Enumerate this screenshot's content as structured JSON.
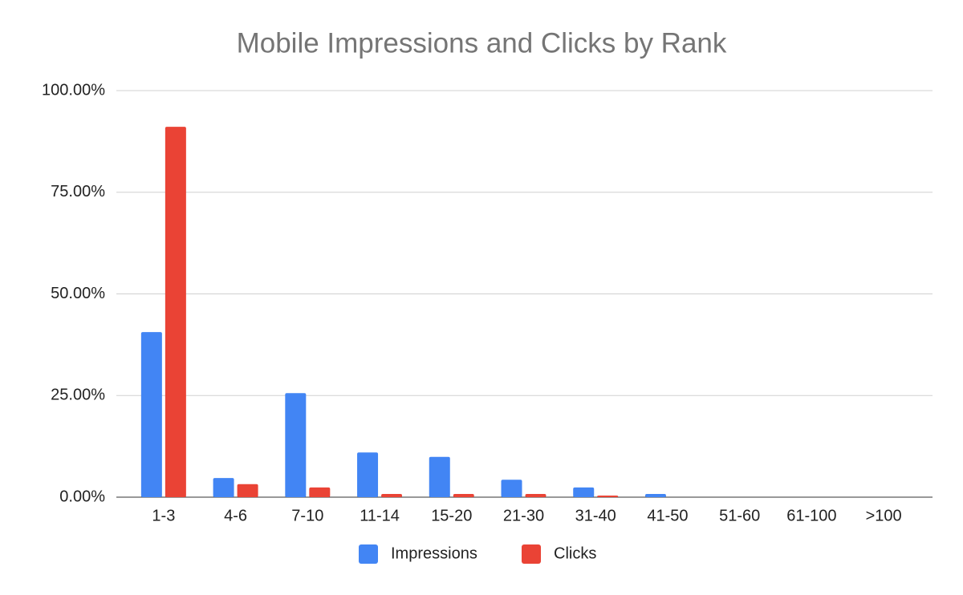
{
  "chart_data": {
    "type": "bar",
    "title": "Mobile Impressions and Clicks by Rank",
    "categories": [
      "1-3",
      "4-6",
      "7-10",
      "11-14",
      "15-20",
      "21-30",
      "31-40",
      "41-50",
      "51-60",
      "61-100",
      ">100"
    ],
    "series": [
      {
        "name": "Impressions",
        "color": "#4285f4",
        "values": [
          40.6,
          4.7,
          25.6,
          11.0,
          9.9,
          4.3,
          2.4,
          0.8,
          0,
          0,
          0
        ]
      },
      {
        "name": "Clicks",
        "color": "#ea4335",
        "values": [
          91.1,
          3.2,
          2.4,
          0.8,
          0.8,
          0.8,
          0.4,
          0,
          0,
          0,
          0
        ]
      }
    ],
    "ylim": [
      0,
      100
    ],
    "yticks": [
      {
        "value": 0,
        "label": "0.00%"
      },
      {
        "value": 25,
        "label": "25.00%"
      },
      {
        "value": 50,
        "label": "50.00%"
      },
      {
        "value": 75,
        "label": "75.00%"
      },
      {
        "value": 100,
        "label": "100.00%"
      }
    ],
    "grid": true,
    "legend": "bottom"
  }
}
